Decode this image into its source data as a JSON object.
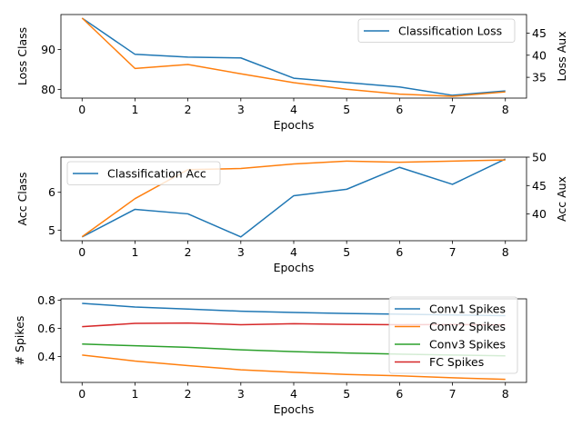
{
  "chart_data": [
    {
      "type": "line",
      "xlabel": "Epochs",
      "ylabel": "Loss Class",
      "ylabel_right": "Loss Aux",
      "x": [
        0,
        1,
        2,
        3,
        4,
        5,
        6,
        7,
        8
      ],
      "xticks": [
        "0",
        "1",
        "2",
        "3",
        "4",
        "5",
        "6",
        "7",
        "8"
      ],
      "xlim": [
        -0.4,
        8.4
      ],
      "ylim": [
        77.8,
        98.8
      ],
      "yticks": [
        "80",
        "90"
      ],
      "ylim_right": [
        30.3,
        49.2
      ],
      "yticks_right": [
        "35",
        "40",
        "45"
      ],
      "legend_position": "upper right",
      "series": [
        {
          "name": "Classification Loss",
          "axis": "left",
          "color": "#1f77b4",
          "values": [
            97.9,
            88.8,
            88.1,
            87.9,
            82.8,
            81.7,
            80.6,
            78.5,
            79.6
          ]
        },
        {
          "name": "",
          "axis": "right",
          "color": "#ff7f0e",
          "values": [
            48.4,
            37.0,
            37.9,
            35.8,
            33.8,
            32.3,
            31.2,
            30.7,
            31.7
          ]
        }
      ]
    },
    {
      "type": "line",
      "xlabel": "Epochs",
      "ylabel": "Acc Class",
      "ylabel_right": "Acc Aux",
      "x": [
        0,
        1,
        2,
        3,
        4,
        5,
        6,
        7,
        8
      ],
      "xticks": [
        "0",
        "1",
        "2",
        "3",
        "4",
        "5",
        "6",
        "7",
        "8"
      ],
      "xlim": [
        -0.4,
        8.4
      ],
      "ylim": [
        4.72,
        6.93
      ],
      "yticks": [
        "5",
        "6"
      ],
      "ylim_right": [
        35.3,
        50.0
      ],
      "yticks_right": [
        "40",
        "45",
        "50"
      ],
      "legend_position": "upper left",
      "series": [
        {
          "name": "Classification Acc",
          "axis": "left",
          "color": "#1f77b4",
          "values": [
            4.82,
            5.55,
            5.43,
            4.82,
            5.91,
            6.08,
            6.66,
            6.21,
            6.88
          ]
        },
        {
          "name": "",
          "axis": "right",
          "color": "#ff7f0e",
          "values": [
            36.0,
            42.7,
            47.8,
            48.0,
            48.8,
            49.3,
            49.1,
            49.3,
            49.5
          ]
        }
      ]
    },
    {
      "type": "line",
      "xlabel": "Epochs",
      "ylabel": "# Spikes",
      "x": [
        0,
        1,
        2,
        3,
        4,
        5,
        6,
        7,
        8
      ],
      "xticks": [
        "0",
        "1",
        "2",
        "3",
        "4",
        "5",
        "6",
        "7",
        "8"
      ],
      "xlim": [
        -0.4,
        8.4
      ],
      "ylim": [
        0.215,
        0.81
      ],
      "yticks": [
        "0.4",
        "0.6",
        "0.8"
      ],
      "legend_position": "upper right",
      "series": [
        {
          "name": "Conv1 Spikes",
          "color": "#1f77b4",
          "values": [
            0.778,
            0.752,
            0.737,
            0.722,
            0.713,
            0.706,
            0.701,
            0.695,
            0.69
          ]
        },
        {
          "name": "Conv2 Spikes",
          "color": "#ff7f0e",
          "values": [
            0.41,
            0.367,
            0.335,
            0.305,
            0.287,
            0.272,
            0.262,
            0.248,
            0.237
          ]
        },
        {
          "name": "Conv3 Spikes",
          "color": "#2ca02c",
          "values": [
            0.488,
            0.476,
            0.465,
            0.447,
            0.434,
            0.424,
            0.416,
            0.41,
            0.404
          ]
        },
        {
          "name": "FC Spikes",
          "color": "#d62728",
          "values": [
            0.612,
            0.635,
            0.638,
            0.626,
            0.633,
            0.628,
            0.626,
            0.627,
            0.625
          ]
        }
      ]
    }
  ]
}
